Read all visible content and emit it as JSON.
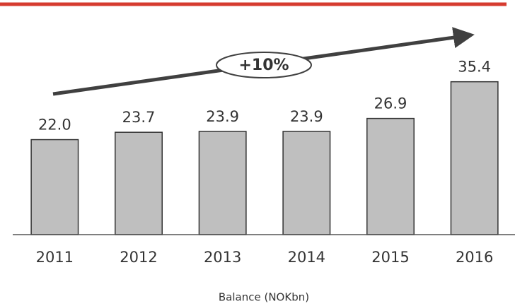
{
  "chart_data": {
    "type": "bar",
    "categories": [
      "2011",
      "2012",
      "2013",
      "2014",
      "2015",
      "2016"
    ],
    "values": [
      22.0,
      23.7,
      23.9,
      23.9,
      26.9,
      35.4
    ],
    "value_labels": [
      "22.0",
      "23.7",
      "23.9",
      "23.9",
      "26.9",
      "35.4"
    ],
    "color": "#bfbfbf",
    "ylim": [
      0,
      54
    ],
    "x_label": "Balance (NOKbn)",
    "annotation": "+10%"
  }
}
